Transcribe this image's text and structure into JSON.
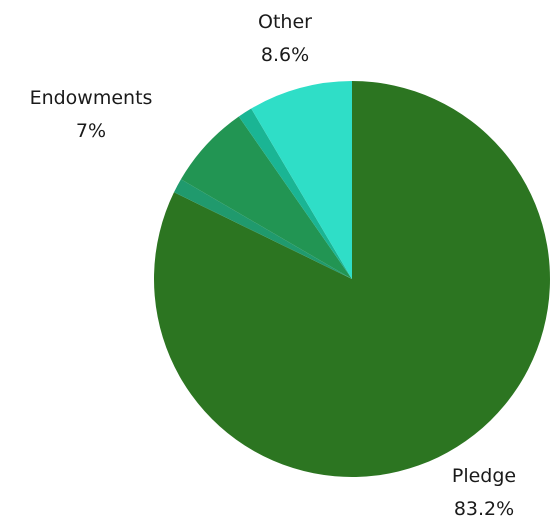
{
  "chart_data": {
    "type": "pie",
    "title": "",
    "start_angle": "12 o'clock",
    "direction": "clockwise",
    "slices": [
      {
        "label": "Pledge",
        "value": 83.2,
        "value_label": "83.2%",
        "color": "#2c7521"
      },
      {
        "label": "",
        "value": 1.2,
        "value_label": "",
        "color": "#209a6d"
      },
      {
        "label": "Endowments",
        "value": 7,
        "value_label": "7%",
        "color": "#229553"
      },
      {
        "label": "",
        "value": 1.2,
        "value_label": "",
        "color": "#1ab594"
      },
      {
        "label": "Other",
        "value": 8.6,
        "value_label": "8.6%",
        "color": "#2fdec7"
      }
    ]
  }
}
